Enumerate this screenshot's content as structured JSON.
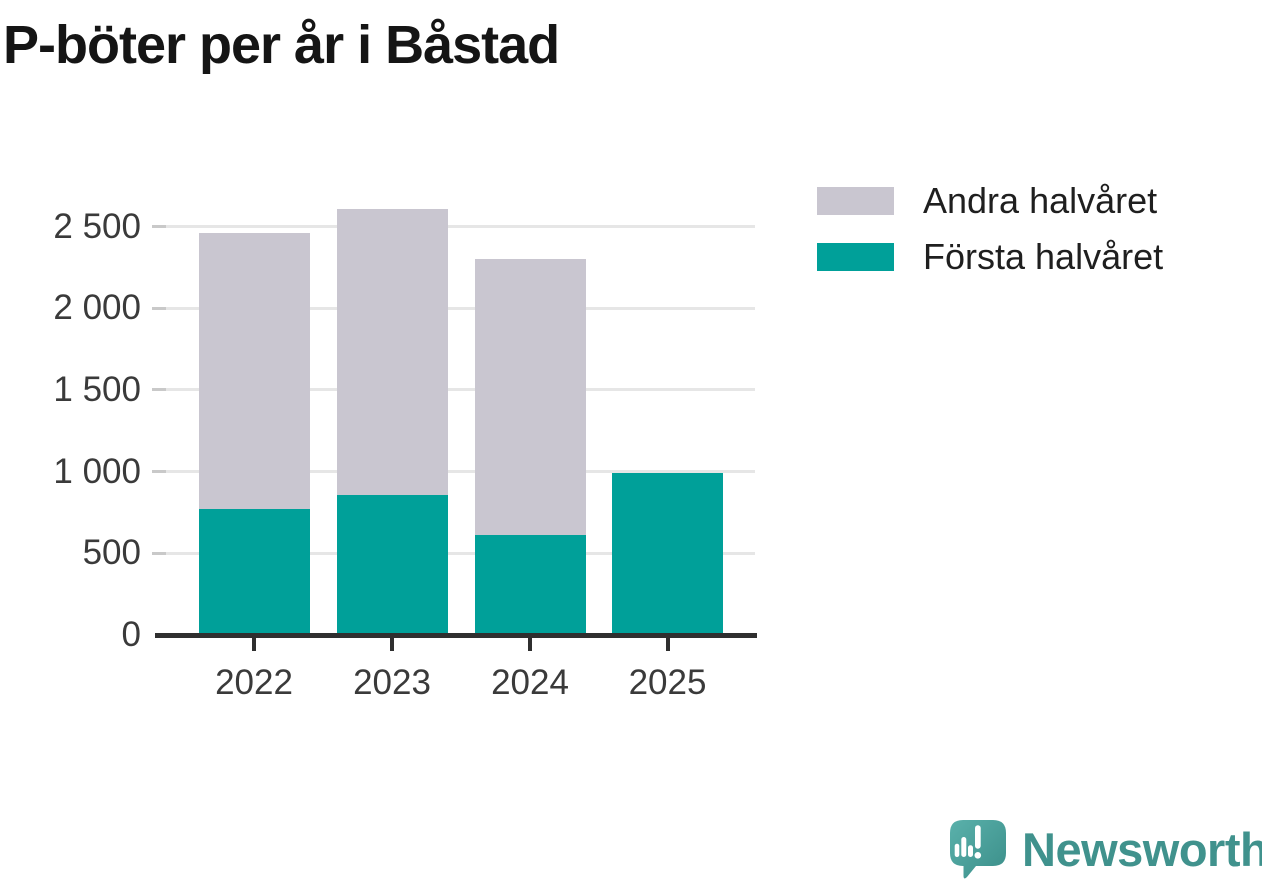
{
  "title": "P-böter per år i Båstad",
  "legend": {
    "items": [
      {
        "label": "Andra halvåret",
        "color": "#c9c6d0"
      },
      {
        "label": "Första halvåret",
        "color": "#00a099"
      }
    ]
  },
  "chart_data": {
    "type": "bar",
    "stacked": true,
    "title": "P-böter per år i Båstad",
    "categories": [
      "2022",
      "2023",
      "2024",
      "2025"
    ],
    "series": [
      {
        "name": "Första halvåret",
        "color": "#00a099",
        "values": [
          770,
          860,
          615,
          990
        ]
      },
      {
        "name": "Andra halvåret",
        "color": "#c9c6d0",
        "values": [
          1690,
          1745,
          1685,
          0
        ]
      }
    ],
    "totals": [
      2460,
      2605,
      2300,
      990
    ],
    "xlabel": "",
    "ylabel": "",
    "ylim": [
      0,
      2700
    ],
    "yticks": [
      0,
      500,
      1000,
      1500,
      2000,
      2500
    ],
    "ytick_labels": [
      "0",
      "500",
      "1 000",
      "1 500",
      "2 000",
      "2 500"
    ],
    "grid": "horizontal",
    "legend_position": "top-right",
    "axis_color": "#2f2f2f",
    "gridline_color": "#e6e6e6"
  },
  "footer": {
    "brand": "Newsworthy",
    "logo_icon": "newsworthy-speech-bubble-bar-chart-icon"
  }
}
